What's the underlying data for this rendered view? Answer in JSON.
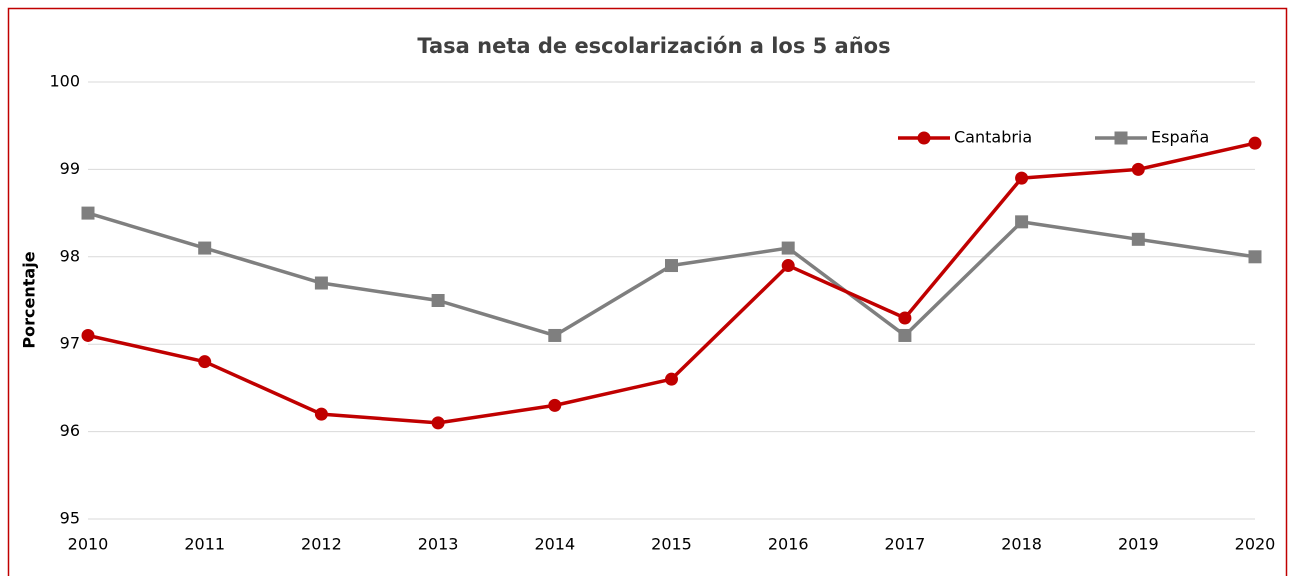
{
  "chart_data": {
    "type": "line",
    "title": "Tasa neta de escolarización a los 5 años",
    "y_label": "Porcentaje",
    "categories": [
      "2010",
      "2011",
      "2012",
      "2013",
      "2014",
      "2015",
      "2016",
      "2017",
      "2018",
      "2019",
      "2020"
    ],
    "series": [
      {
        "name": "Cantabria",
        "color": "#c00000",
        "marker": "circle",
        "values": [
          97.1,
          96.8,
          96.2,
          96.1,
          96.3,
          96.6,
          97.9,
          97.3,
          98.9,
          99.0,
          99.3
        ]
      },
      {
        "name": "España",
        "color": "#7f7f7f",
        "marker": "square",
        "values": [
          98.5,
          98.1,
          97.7,
          97.5,
          97.1,
          97.9,
          98.1,
          97.1,
          98.4,
          98.2,
          98.0
        ]
      }
    ],
    "ylim": [
      95,
      100
    ],
    "yticks": [
      95,
      96,
      97,
      98,
      99,
      100
    ],
    "grid": true,
    "legend": "top-right"
  }
}
